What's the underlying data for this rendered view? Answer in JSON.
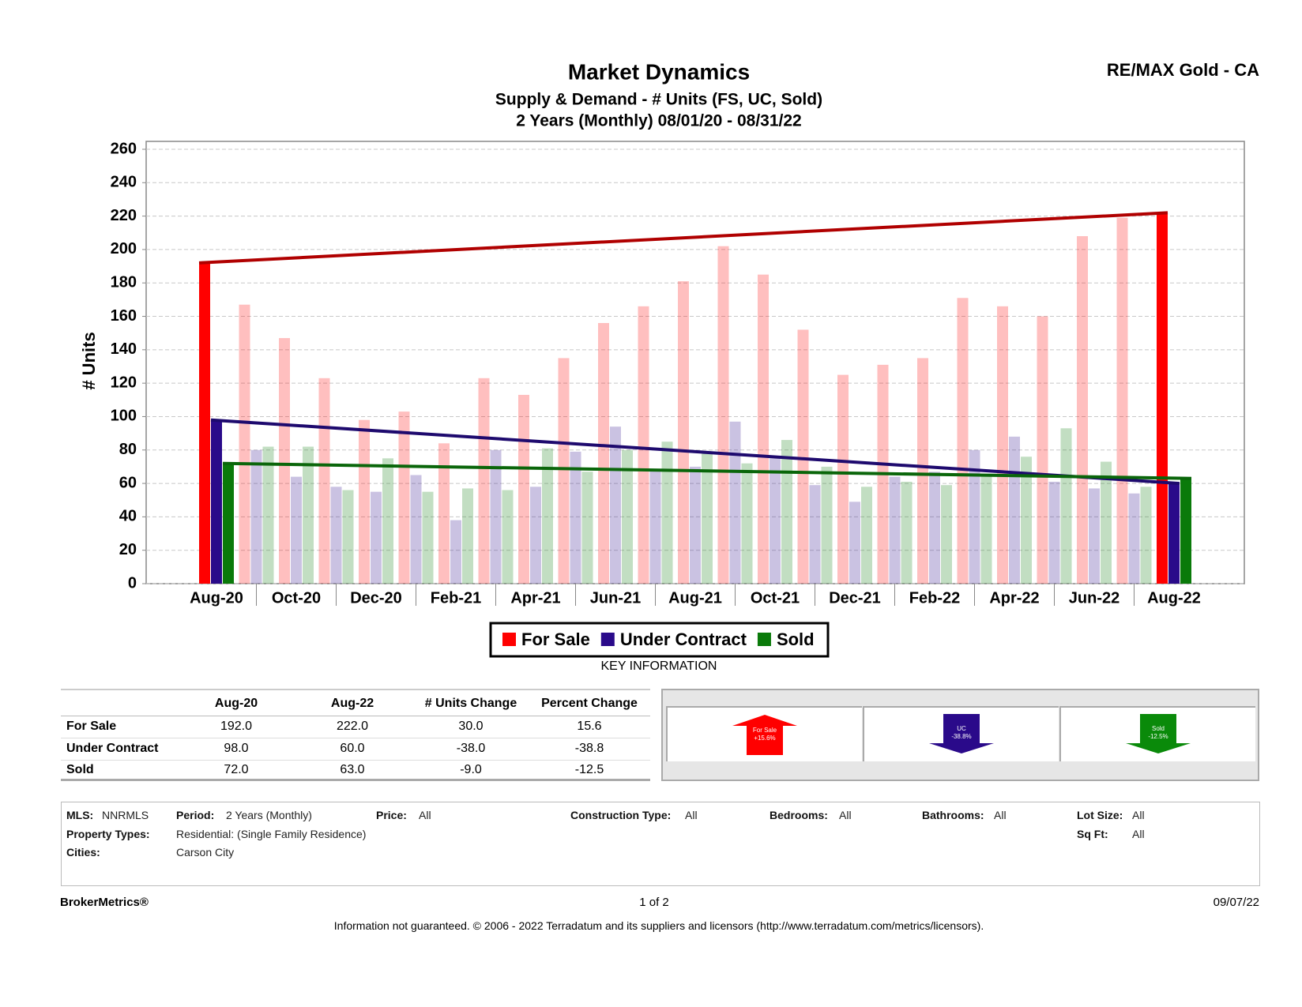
{
  "header": {
    "brand": "RE/MAX Gold - CA"
  },
  "chart_data": {
    "type": "bar",
    "title": "Market Dynamics",
    "subtitle": [
      "Supply & Demand - # Units (FS, UC, Sold)",
      "2 Years (Monthly) 08/01/20 - 08/31/22"
    ],
    "y_label": "# Units",
    "categories": [
      "Aug-20",
      null,
      "Oct-20",
      null,
      "Dec-20",
      null,
      "Feb-21",
      null,
      "Apr-21",
      null,
      "Jun-21",
      null,
      "Aug-21",
      null,
      "Oct-21",
      null,
      "Dec-21",
      null,
      "Feb-22",
      null,
      "Apr-22",
      null,
      "Jun-22",
      null,
      "Aug-22"
    ],
    "series": [
      {
        "name": "For Sale",
        "color": "#ff0000",
        "trend_color": "#b00000",
        "values": [
          192,
          167,
          147,
          123,
          98,
          103,
          84,
          123,
          113,
          135,
          156,
          166,
          181,
          202,
          185,
          152,
          125,
          131,
          135,
          171,
          166,
          160,
          208,
          219,
          222
        ]
      },
      {
        "name": "Under Contract",
        "color": "#2a0a8a",
        "trend_color": "#1e0a6e",
        "values": [
          98,
          80,
          64,
          58,
          55,
          65,
          38,
          80,
          58,
          79,
          94,
          68,
          70,
          97,
          75,
          59,
          49,
          64,
          67,
          80,
          88,
          61,
          57,
          54,
          60
        ]
      },
      {
        "name": "Sold",
        "color": "#0a7a0a",
        "trend_color": "#0a660a",
        "values": [
          72,
          82,
          82,
          56,
          75,
          55,
          57,
          56,
          81,
          67,
          80,
          85,
          78,
          72,
          86,
          70,
          58,
          61,
          59,
          65,
          76,
          93,
          73,
          58,
          63
        ]
      }
    ],
    "ylim": [
      0,
      260
    ],
    "yticks": [
      0,
      20,
      40,
      60,
      80,
      100,
      120,
      140,
      160,
      180,
      200,
      220,
      240,
      260
    ],
    "grid": true,
    "legend": "bottom"
  },
  "key_information": {
    "title": "KEY INFORMATION",
    "columns": [
      "Aug-20",
      "Aug-22",
      "# Units Change",
      "Percent Change"
    ],
    "rows": [
      {
        "label": "For Sale",
        "values": [
          "192.0",
          "222.0",
          "30.0",
          "15.6"
        ]
      },
      {
        "label": "Under Contract",
        "values": [
          "98.0",
          "60.0",
          "-38.0",
          "-38.8"
        ]
      },
      {
        "label": "Sold",
        "values": [
          "72.0",
          "63.0",
          "-9.0",
          "-12.5"
        ]
      }
    ]
  },
  "indicators": [
    {
      "name": "For Sale",
      "change": "+15.6%"
    },
    {
      "name": "UC",
      "change": "-38.8%"
    },
    {
      "name": "Sold",
      "change": "-12.5%"
    }
  ],
  "filters": [
    {
      "label": "MLS:",
      "value": "NNRMLS"
    },
    {
      "label": "Period:",
      "value": "2 Years (Monthly)"
    },
    {
      "label": "Price:",
      "value": "All"
    },
    {
      "label": "Construction Type:",
      "value": "All"
    },
    {
      "label": "Bedrooms:",
      "value": "All"
    },
    {
      "label": "Bathrooms:",
      "value": "All"
    },
    {
      "label": "Lot Size:",
      "value": "All"
    },
    {
      "label": "Property Types:",
      "value": "Residential: (Single Family Residence)"
    },
    {
      "label": "Sq Ft:",
      "value": "All"
    },
    {
      "label": "Cities:",
      "value": "Carson City"
    }
  ],
  "footer": {
    "brand": "BrokerMetrics®",
    "page": "1 of 2",
    "date": "09/07/22",
    "disclaimer": "Information not guaranteed. © 2006 - 2022 Terradatum and its suppliers and licensors (http://www.terradatum.com/metrics/licensors)."
  }
}
